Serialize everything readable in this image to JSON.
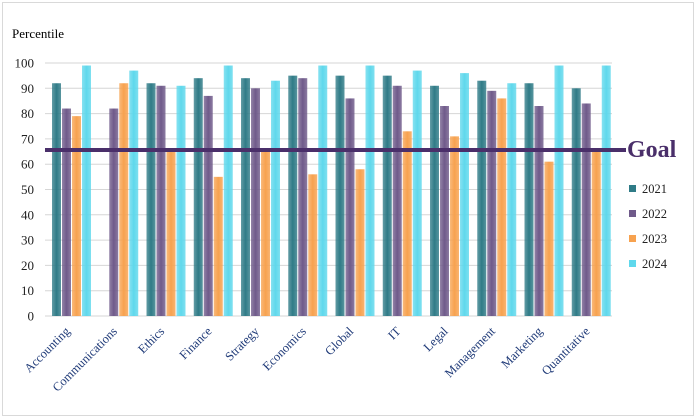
{
  "chart_data": {
    "type": "bar",
    "ylabel": "Percentile",
    "ylim": [
      0,
      100
    ],
    "yticks": [
      0,
      10,
      20,
      30,
      40,
      50,
      60,
      70,
      80,
      90,
      100
    ],
    "categories": [
      "Accounting",
      "Communications",
      "Ethics",
      "Finance",
      "Strategy",
      "Economics",
      "Global",
      "IT",
      "Legal",
      "Management",
      "Marketing",
      "Quantitative"
    ],
    "series": [
      {
        "name": "2021",
        "color": "#2f7b87",
        "values": [
          92,
          null,
          92,
          94,
          94,
          95,
          95,
          95,
          91,
          93,
          92,
          90
        ]
      },
      {
        "name": "2022",
        "color": "#6f5a8a",
        "values": [
          82,
          82,
          91,
          87,
          90,
          94,
          86,
          91,
          83,
          89,
          83,
          84
        ]
      },
      {
        "name": "2023",
        "color": "#f7a24f",
        "values": [
          79,
          92,
          66,
          55,
          65,
          56,
          58,
          73,
          71,
          86,
          61,
          66
        ]
      },
      {
        "name": "2024",
        "color": "#5fd8ec",
        "values": [
          99,
          97,
          91,
          99,
          93,
          99,
          99,
          97,
          96,
          92,
          99,
          99
        ]
      }
    ],
    "goal": {
      "label": "Goal",
      "value": 66,
      "color": "#4a2f6a"
    },
    "legend_position": "right",
    "grid": true
  }
}
